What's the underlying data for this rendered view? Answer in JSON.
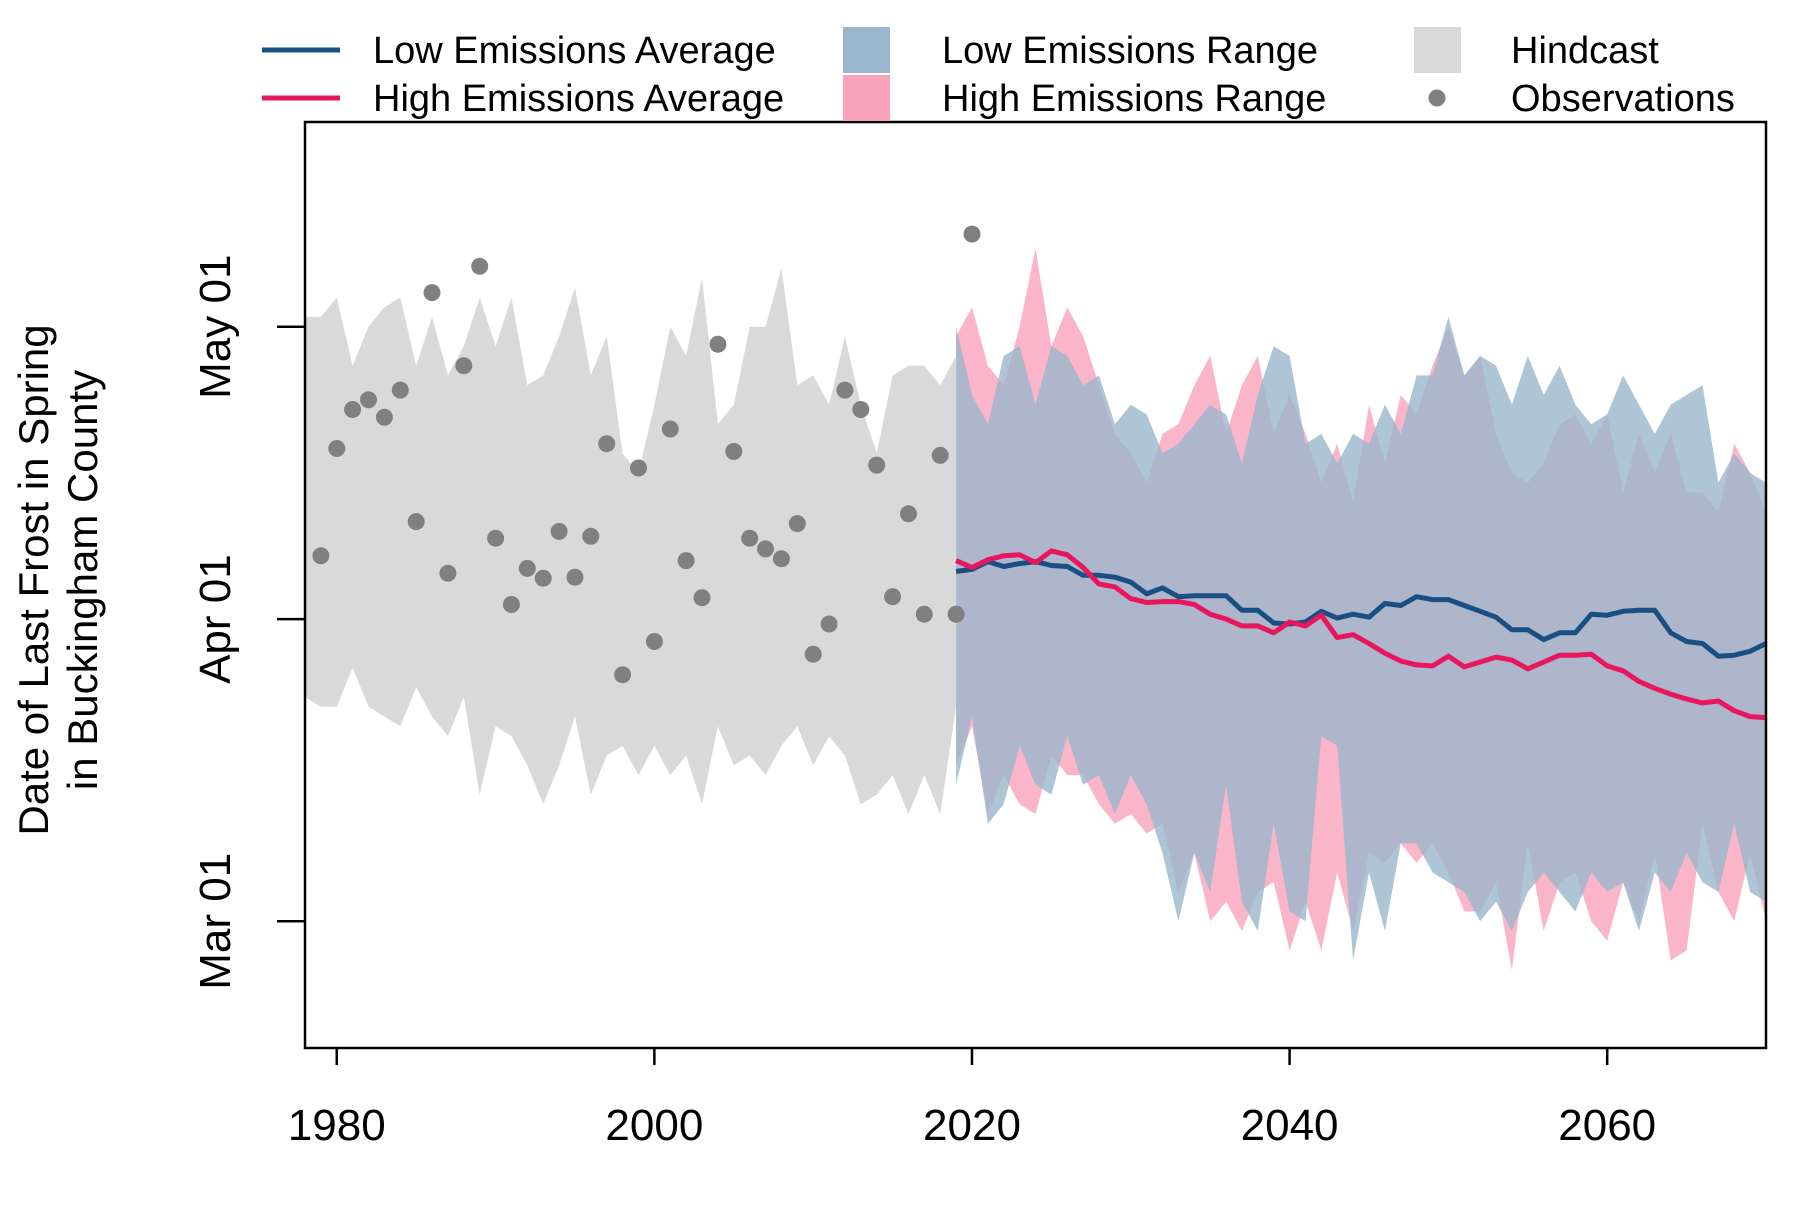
{
  "chart_data": {
    "type": "line",
    "ylabel_lines": [
      "Date of Last Frost in Spring",
      "in Buckingham County"
    ],
    "xlabel": "",
    "xlim": [
      1978,
      2070
    ],
    "ylim_day_of_year": [
      47,
      142
    ],
    "x_ticks": [
      1980,
      2000,
      2020,
      2040,
      2060
    ],
    "y_ticks": [
      {
        "label": "Mar 01",
        "day_of_year": 60
      },
      {
        "label": "Apr 01",
        "day_of_year": 91
      },
      {
        "label": "May 01",
        "day_of_year": 121
      }
    ],
    "legend": [
      {
        "label": "Low Emissions Average",
        "kind": "line",
        "color": "#1a4f82"
      },
      {
        "label": "High Emissions Average",
        "kind": "line",
        "color": "#e8175d"
      },
      {
        "label": "Low Emissions Range",
        "kind": "area",
        "color": "#9ab6cc"
      },
      {
        "label": "High Emissions Range",
        "kind": "area",
        "color": "#f9a3bb"
      },
      {
        "label": "Hindcast",
        "kind": "area",
        "color": "#d9d9d9"
      },
      {
        "label": "Observations",
        "kind": "point",
        "color": "#808080"
      }
    ],
    "series": [
      {
        "name": "Hindcast",
        "kind": "range",
        "color": "#d9d9d9",
        "x": [
          1978,
          1979,
          1980,
          1981,
          1982,
          1983,
          1984,
          1985,
          1986,
          1987,
          1988,
          1989,
          1990,
          1991,
          1992,
          1993,
          1994,
          1995,
          1996,
          1997,
          1998,
          1999,
          2000,
          2001,
          2002,
          2003,
          2004,
          2005,
          2006,
          2007,
          2008,
          2009,
          2010,
          2011,
          2012,
          2013,
          2014,
          2015,
          2016,
          2017,
          2018,
          2019
        ],
        "upper": [
          122,
          122,
          124,
          117,
          121,
          123,
          124,
          117,
          122,
          116,
          119,
          124,
          119,
          124,
          115,
          116,
          120,
          125,
          116,
          120,
          108,
          106,
          113,
          121,
          118,
          126,
          111,
          113,
          121,
          121,
          127,
          115,
          116,
          113,
          120,
          113,
          108,
          116,
          117,
          117,
          115,
          118
        ],
        "lower": [
          83,
          82,
          82,
          86,
          82,
          81,
          80,
          84,
          81,
          79,
          83,
          73,
          80,
          79,
          76,
          72,
          76,
          81,
          73,
          77,
          78,
          75,
          78,
          75,
          77,
          72,
          80,
          76,
          77,
          75,
          78,
          80,
          76,
          79,
          77,
          72,
          73,
          75,
          71,
          75,
          71,
          82
        ]
      },
      {
        "name": "Observations",
        "kind": "points",
        "color": "#808080",
        "x": [
          1979,
          1980,
          1981,
          1982,
          1983,
          1984,
          1985,
          1986,
          1987,
          1988,
          1989,
          1990,
          1991,
          1992,
          1993,
          1994,
          1995,
          1996,
          1997,
          1998,
          1999,
          2000,
          2001,
          2002,
          2003,
          2004,
          2005,
          2006,
          2007,
          2008,
          2009,
          2010,
          2011,
          2012,
          2013,
          2014,
          2015,
          2016,
          2017,
          2018,
          2019,
          2020
        ],
        "y": [
          97.5,
          108.5,
          112.5,
          113.5,
          111.7,
          114.5,
          101,
          124.5,
          95.7,
          117,
          127.2,
          99.3,
          92.5,
          96.2,
          95.2,
          100,
          95.3,
          99.5,
          109,
          85.3,
          106.5,
          88.7,
          110.5,
          97,
          93.2,
          119.2,
          108.2,
          99.3,
          98.2,
          97.2,
          100.8,
          87.4,
          90.5,
          114.5,
          112.5,
          106.8,
          93.3,
          101.8,
          91.5,
          107.8,
          91.5,
          130.5
        ]
      },
      {
        "name": "High Emissions Range",
        "kind": "range",
        "color": "#f9a3bb",
        "x": [
          2019,
          2020,
          2021,
          2022,
          2023,
          2024,
          2025,
          2026,
          2027,
          2028,
          2029,
          2030,
          2031,
          2032,
          2033,
          2034,
          2035,
          2036,
          2037,
          2038,
          2039,
          2040,
          2041,
          2042,
          2043,
          2044,
          2045,
          2046,
          2047,
          2048,
          2049,
          2050,
          2051,
          2052,
          2053,
          2054,
          2055,
          2056,
          2057,
          2058,
          2059,
          2060,
          2061,
          2062,
          2063,
          2064,
          2065,
          2066,
          2067,
          2068,
          2069,
          2070
        ],
        "upper": [
          120,
          123,
          117,
          115,
          121,
          129,
          119,
          123,
          120,
          115,
          110,
          108,
          105,
          110,
          111,
          115,
          118,
          110,
          115,
          118,
          110,
          114,
          110,
          105,
          109,
          103,
          113,
          107,
          114,
          112,
          117,
          121,
          116,
          118,
          110,
          106,
          105,
          107,
          111,
          112,
          109,
          112,
          104,
          110,
          106,
          110,
          104,
          104,
          102,
          109,
          106,
          102
        ],
        "lower": [
          76,
          80,
          71,
          75,
          72,
          71,
          77,
          75,
          75,
          72,
          70,
          71,
          69,
          70,
          63,
          67,
          60,
          62,
          59,
          63,
          64,
          57,
          62,
          57,
          65,
          59,
          67,
          66,
          68,
          66,
          68,
          65,
          61,
          61,
          64,
          55,
          68,
          59,
          64,
          65,
          60,
          58,
          64,
          60,
          67,
          56,
          57,
          70,
          63,
          60,
          67,
          60
        ]
      },
      {
        "name": "Low Emissions Range",
        "kind": "range",
        "color": "#9ab6cc",
        "x": [
          2019,
          2020,
          2021,
          2022,
          2023,
          2024,
          2025,
          2026,
          2027,
          2028,
          2029,
          2030,
          2031,
          2032,
          2033,
          2034,
          2035,
          2036,
          2037,
          2038,
          2039,
          2040,
          2041,
          2042,
          2043,
          2044,
          2045,
          2046,
          2047,
          2048,
          2049,
          2050,
          2051,
          2052,
          2053,
          2054,
          2055,
          2056,
          2057,
          2058,
          2059,
          2060,
          2061,
          2062,
          2063,
          2064,
          2065,
          2066,
          2067,
          2068,
          2069,
          2070
        ],
        "upper": [
          121,
          114,
          111,
          118,
          119,
          113,
          119,
          118,
          115,
          116,
          111,
          113,
          112,
          108,
          109,
          111,
          113,
          112,
          107,
          114,
          119,
          118,
          109,
          110,
          107,
          110,
          109,
          113,
          110,
          116,
          116,
          122,
          116,
          118,
          117,
          113,
          118,
          114,
          117,
          113,
          111,
          112,
          116,
          113,
          110,
          113,
          114,
          115,
          105,
          108,
          106,
          105
        ],
        "lower": [
          74,
          81,
          70,
          72,
          78,
          74,
          73,
          79,
          74,
          75,
          71,
          75,
          72,
          67,
          60,
          67,
          63,
          74,
          62,
          59,
          70,
          61,
          60,
          79,
          78,
          56,
          65,
          59,
          68,
          68,
          65,
          64,
          63,
          60,
          62,
          59,
          63,
          65,
          63,
          61,
          65,
          63,
          64,
          59,
          65,
          63,
          67,
          64,
          63,
          70,
          63,
          62
        ]
      },
      {
        "name": "Low Emissions Average",
        "kind": "line",
        "color": "#1a4f82",
        "x": [
          2019,
          2020,
          2021,
          2022,
          2023,
          2024,
          2025,
          2026,
          2027,
          2028,
          2029,
          2030,
          2031,
          2032,
          2033,
          2034,
          2035,
          2036,
          2037,
          2038,
          2039,
          2040,
          2041,
          2042,
          2043,
          2044,
          2045,
          2046,
          2047,
          2048,
          2049,
          2050,
          2051,
          2052,
          2053,
          2054,
          2055,
          2056,
          2057,
          2058,
          2059,
          2060,
          2061,
          2062,
          2063,
          2064,
          2065,
          2066,
          2067,
          2068,
          2069,
          2070
        ],
        "y": [
          95.9,
          96.1,
          96.9,
          96.4,
          96.7,
          96.9,
          96.5,
          96.4,
          95.5,
          95.5,
          95.3,
          94.8,
          93.6,
          94.2,
          93.3,
          93.4,
          93.4,
          93.4,
          91.9,
          91.9,
          90.6,
          90.5,
          90.7,
          91.8,
          91.1,
          91.5,
          91.2,
          92.6,
          92.4,
          93.3,
          93.0,
          93.0,
          92.4,
          91.8,
          91.2,
          89.9,
          89.9,
          88.9,
          89.6,
          89.6,
          91.5,
          91.4,
          91.8,
          91.9,
          91.9,
          89.6,
          88.7,
          88.5,
          87.2,
          87.3,
          87.7,
          88.5
        ]
      },
      {
        "name": "High Emissions Average",
        "kind": "line",
        "color": "#e8175d",
        "x": [
          2019,
          2020,
          2021,
          2022,
          2023,
          2024,
          2025,
          2026,
          2027,
          2028,
          2029,
          2030,
          2031,
          2032,
          2033,
          2034,
          2035,
          2036,
          2037,
          2038,
          2039,
          2040,
          2041,
          2042,
          2043,
          2044,
          2045,
          2046,
          2047,
          2048,
          2049,
          2050,
          2051,
          2052,
          2053,
          2054,
          2055,
          2056,
          2057,
          2058,
          2059,
          2060,
          2061,
          2062,
          2063,
          2064,
          2065,
          2066,
          2067,
          2068,
          2069,
          2070
        ],
        "y": [
          97.0,
          96.3,
          97.1,
          97.5,
          97.6,
          96.8,
          98.0,
          97.6,
          96.3,
          94.6,
          94.3,
          93.1,
          92.7,
          92.8,
          92.8,
          92.5,
          91.5,
          91.0,
          90.3,
          90.3,
          89.6,
          90.7,
          90.3,
          91.4,
          89.1,
          89.4,
          88.5,
          87.5,
          86.7,
          86.3,
          86.2,
          87.2,
          86.1,
          86.6,
          87.1,
          86.8,
          85.9,
          86.6,
          87.3,
          87.3,
          87.4,
          86.2,
          85.7,
          84.6,
          83.9,
          83.3,
          82.8,
          82.4,
          82.6,
          81.6,
          81.0,
          80.9
        ]
      }
    ]
  }
}
